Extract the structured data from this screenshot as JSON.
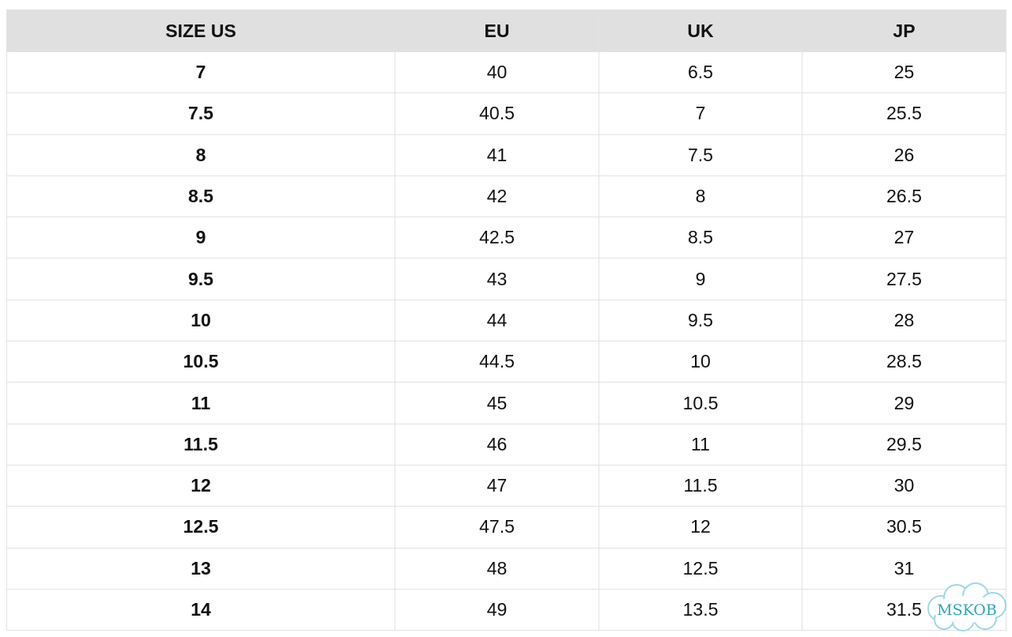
{
  "table": {
    "header": [
      "SIZE US",
      "EU",
      "UK",
      "JP"
    ],
    "rows": [
      [
        "7",
        "40",
        "6.5",
        "25"
      ],
      [
        "7.5",
        "40.5",
        "7",
        "25.5"
      ],
      [
        "8",
        "41",
        "7.5",
        "26"
      ],
      [
        "8.5",
        "42",
        "8",
        "26.5"
      ],
      [
        "9",
        "42.5",
        "8.5",
        "27"
      ],
      [
        "9.5",
        "43",
        "9",
        "27.5"
      ],
      [
        "10",
        "44",
        "9.5",
        "28"
      ],
      [
        "10.5",
        "44.5",
        "10",
        "28.5"
      ],
      [
        "11",
        "45",
        "10.5",
        "29"
      ],
      [
        "11.5",
        "46",
        "11",
        "29.5"
      ],
      [
        "12",
        "47",
        "11.5",
        "30"
      ],
      [
        "12.5",
        "47.5",
        "12",
        "30.5"
      ],
      [
        "13",
        "48",
        "12.5",
        "31"
      ],
      [
        "14",
        "49",
        "13.5",
        "31.5"
      ]
    ]
  },
  "watermark": "MSKOB"
}
